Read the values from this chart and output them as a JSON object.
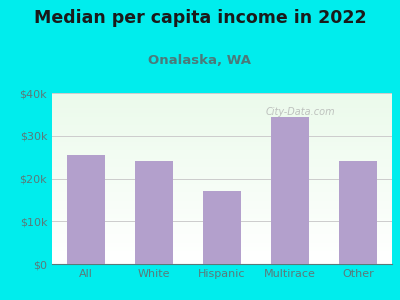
{
  "title": "Median per capita income in 2022",
  "subtitle": "Onalaska, WA",
  "categories": [
    "All",
    "White",
    "Hispanic",
    "Multirace",
    "Other"
  ],
  "values": [
    25500,
    24200,
    17000,
    34500,
    24000
  ],
  "bar_color": "#b3a0cc",
  "background_outer": "#00eded",
  "title_color": "#1a1a1a",
  "subtitle_color": "#4a7a7a",
  "tick_color": "#5a7a7a",
  "grid_color": "#cccccc",
  "ylim": [
    0,
    40000
  ],
  "yticks": [
    0,
    10000,
    20000,
    30000,
    40000
  ],
  "ytick_labels": [
    "$0",
    "$10k",
    "$20k",
    "$30k",
    "$40k"
  ],
  "title_fontsize": 12.5,
  "subtitle_fontsize": 9.5,
  "tick_fontsize": 8,
  "watermark": "City-Data.com"
}
